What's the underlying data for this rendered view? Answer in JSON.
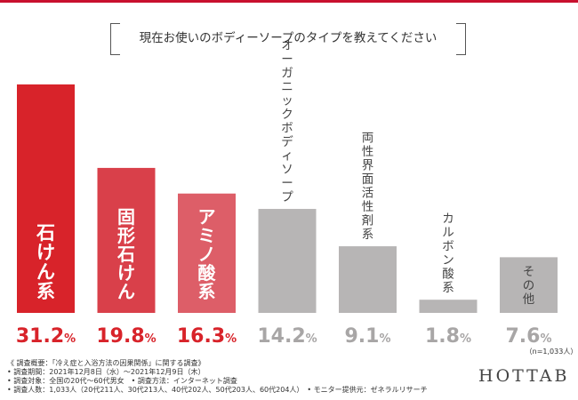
{
  "title": "現在お使いのボディーソープのタイプを教えてください",
  "chart_data": {
    "type": "bar",
    "categories": [
      "石けん系",
      "固形石けん",
      "アミノ酸系",
      "オーガニックボディソープ",
      "両性界面活性剤系",
      "カルボン酸系",
      "その他"
    ],
    "values": [
      31.2,
      19.8,
      16.3,
      14.2,
      9.1,
      1.8,
      7.6
    ],
    "value_labels": [
      "31.2%",
      "19.8%",
      "16.3%",
      "14.2%",
      "9.1%",
      "1.8%",
      "7.6%"
    ],
    "colors": [
      "#d8232a",
      "#d9404a",
      "#dd5e68",
      "#b7b5b5",
      "#b7b5b5",
      "#b7b5b5",
      "#b7b5b5"
    ],
    "label_colors": [
      "#d8232a",
      "#d8232a",
      "#d8232a",
      "#a8a6a6",
      "#a8a6a6",
      "#a8a6a6",
      "#a8a6a6"
    ],
    "ylim": [
      0,
      31.2
    ],
    "sample_note": "（n=1,033人）"
  },
  "notes": [
    "《 調査概要：「冷え症と入浴方法の因果関係」に関する調査》",
    "• 調査期間：2021年12月8日（水）～2021年12月9日（木）",
    "• 調査対象：全国の20代～60代男女　• 調査方法：インターネット調査",
    "• 調査人数：1,033人（20代211人、30代213人、40代202人、50代203人、60代204人）　• モニター提供元：ゼネラルリサーチ"
  ],
  "brand": "HOTTAB"
}
